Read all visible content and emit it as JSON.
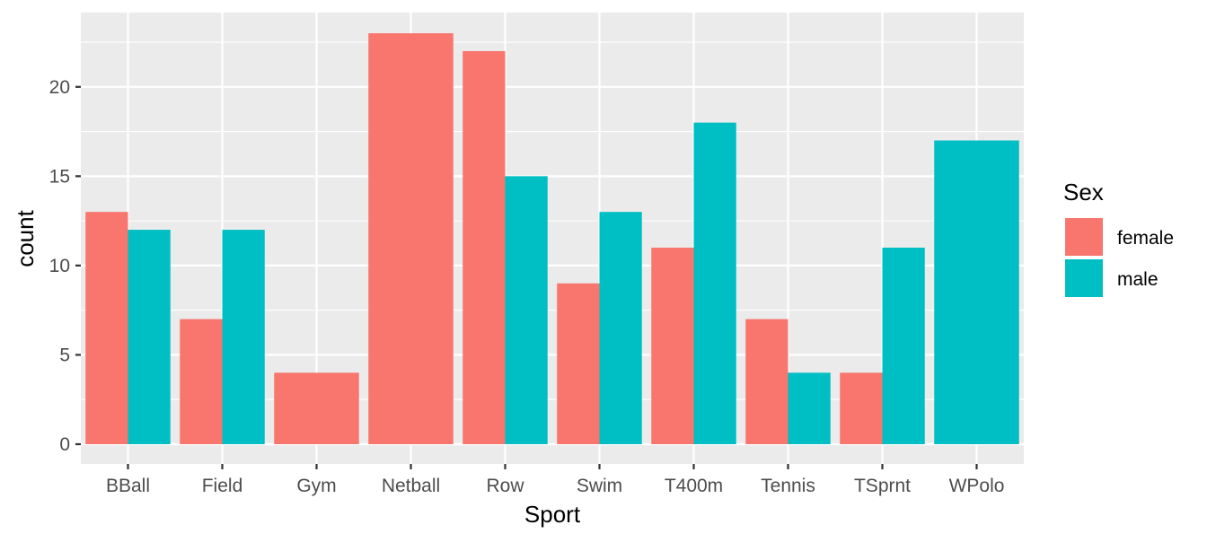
{
  "chart_data": {
    "type": "bar",
    "position": "dodge",
    "title": "",
    "xlabel": "Sport",
    "ylabel": "count",
    "categories": [
      "BBall",
      "Field",
      "Gym",
      "Netball",
      "Row",
      "Swim",
      "T400m",
      "Tennis",
      "TSprnt",
      "WPolo"
    ],
    "series": [
      {
        "name": "female",
        "color": "#F8766D",
        "values": [
          13,
          7,
          4,
          23,
          22,
          9,
          11,
          7,
          4,
          null
        ]
      },
      {
        "name": "male",
        "color": "#00BFC4",
        "values": [
          12,
          12,
          null,
          null,
          15,
          13,
          18,
          4,
          11,
          17
        ]
      }
    ],
    "ylim": [
      0,
      24
    ],
    "yticks": [
      0,
      5,
      10,
      15,
      20
    ],
    "grid": true,
    "background": "#EBEBEB",
    "legend": {
      "title": "Sex",
      "position": "right",
      "entries": [
        "female",
        "male"
      ]
    }
  }
}
